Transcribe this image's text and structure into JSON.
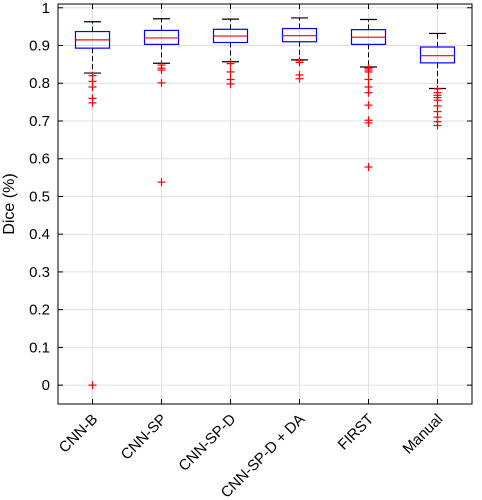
{
  "chart_data": {
    "type": "box",
    "categories": [
      "CNN-B",
      "CNN-SP",
      "CNN-SP-D",
      "CNN-SP-D + DA",
      "FIRST",
      "Manual"
    ],
    "ylabel": "Dice (%)",
    "xlabel": "",
    "title": "",
    "ylim": [
      -0.05,
      1.01
    ],
    "yticks": [
      "0",
      "0.1",
      "0.2",
      "0.3",
      "0.4",
      "0.5",
      "0.6",
      "0.7",
      "0.8",
      "0.9",
      "1"
    ],
    "grid": true,
    "boxes": [
      {
        "category": "CNN-B",
        "whisker_low": 0.827,
        "q1": 0.893,
        "median": 0.915,
        "q3": 0.937,
        "whisker_high": 0.963,
        "outliers": [
          0.82,
          0.805,
          0.79,
          0.76,
          0.748,
          0.0
        ]
      },
      {
        "category": "CNN-SP",
        "whisker_low": 0.853,
        "q1": 0.903,
        "median": 0.92,
        "q3": 0.94,
        "whisker_high": 0.971,
        "outliers": [
          0.848,
          0.84,
          0.835,
          0.801,
          0.538
        ]
      },
      {
        "category": "CNN-SP-D",
        "whisker_low": 0.857,
        "q1": 0.908,
        "median": 0.925,
        "q3": 0.943,
        "whisker_high": 0.97,
        "outliers": [
          0.852,
          0.83,
          0.81,
          0.798
        ]
      },
      {
        "category": "CNN-SP-D + DA",
        "whisker_low": 0.862,
        "q1": 0.91,
        "median": 0.926,
        "q3": 0.945,
        "whisker_high": 0.973,
        "outliers": [
          0.86,
          0.855,
          0.822,
          0.812
        ]
      },
      {
        "category": "FIRST",
        "whisker_low": 0.843,
        "q1": 0.903,
        "median": 0.922,
        "q3": 0.942,
        "whisker_high": 0.969,
        "outliers": [
          0.84,
          0.835,
          0.83,
          0.81,
          0.79,
          0.775,
          0.742,
          0.702,
          0.695,
          0.578
        ]
      },
      {
        "category": "Manual",
        "whisker_low": 0.786,
        "q1": 0.854,
        "median": 0.873,
        "q3": 0.896,
        "whisker_high": 0.932,
        "outliers": [
          0.785,
          0.775,
          0.768,
          0.762,
          0.755,
          0.74,
          0.725,
          0.71,
          0.698,
          0.688
        ]
      }
    ],
    "colors": {
      "box": "#0000ff",
      "median": "#ff0000",
      "whisker": "#000000",
      "outlier": "#ff0000",
      "grid": "#e0e0e0"
    }
  }
}
